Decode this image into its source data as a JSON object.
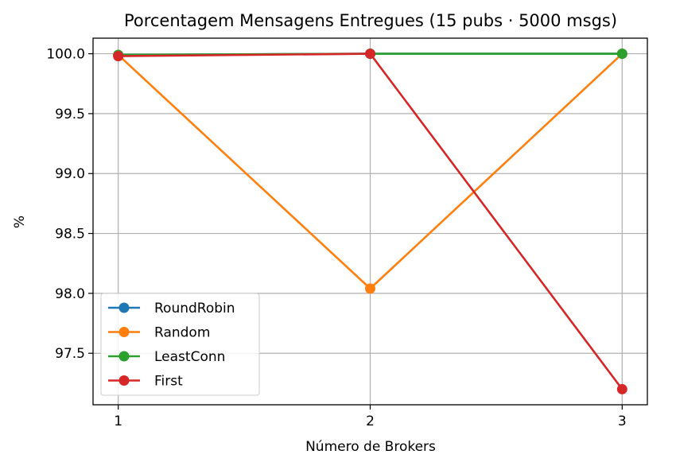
{
  "chart_data": {
    "type": "line",
    "title": "Porcentagem Mensagens Entregues (15 pubs · 5000 msgs)",
    "xlabel": "Número de Brokers",
    "ylabel": "%",
    "x": [
      1,
      2,
      3
    ],
    "xticks": [
      "1",
      "2",
      "3"
    ],
    "yticks": [
      "97.5",
      "98.0",
      "98.5",
      "99.0",
      "99.5",
      "100.0"
    ],
    "ylim": [
      97.07,
      100.13
    ],
    "grid": true,
    "legend_position": "lower-left",
    "series": [
      {
        "name": "RoundRobin",
        "color": "#1f77b4",
        "values": [
          99.99,
          100.0,
          100.0
        ]
      },
      {
        "name": "Random",
        "color": "#ff7f0e",
        "values": [
          99.99,
          98.04,
          100.0
        ]
      },
      {
        "name": "LeastConn",
        "color": "#2ca02c",
        "values": [
          99.99,
          100.0,
          100.0
        ]
      },
      {
        "name": "First",
        "color": "#d62728",
        "values": [
          99.98,
          100.0,
          97.2
        ]
      }
    ]
  }
}
